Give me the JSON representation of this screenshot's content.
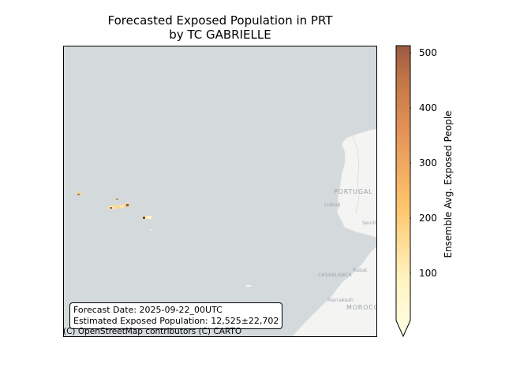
{
  "title": {
    "line1": "Forecasted Exposed Population in PRT",
    "line2": "by TC GABRIELLE"
  },
  "info": {
    "forecast_date": "Forecast Date: 2025-09-22_00UTC",
    "estimated_population": "Estimated Exposed Population: 12,525±22,702"
  },
  "attribution": "(C) OpenStreetMap contributors (C) CARTO",
  "map_labels": {
    "portugal": "PORTUGAL",
    "lisbon": "Lisbon",
    "seville": "Sevill",
    "rabat": "Rabat",
    "casablanca": "CASABLANCA",
    "marrakesh": "Marrakesh",
    "morocco": "MOROCC"
  },
  "colorbar": {
    "label": "Ensemble Avg. Exposed People",
    "ticks": [
      "100",
      "200",
      "300",
      "400",
      "500"
    ],
    "colors": [
      "#ffffe5",
      "#fee391",
      "#fec44f",
      "#e8a35a",
      "#d07c48",
      "#9b5a43"
    ],
    "extend": "min"
  },
  "colors": {
    "ocean": "#d4dadc",
    "land": "#f4f4f3"
  }
}
